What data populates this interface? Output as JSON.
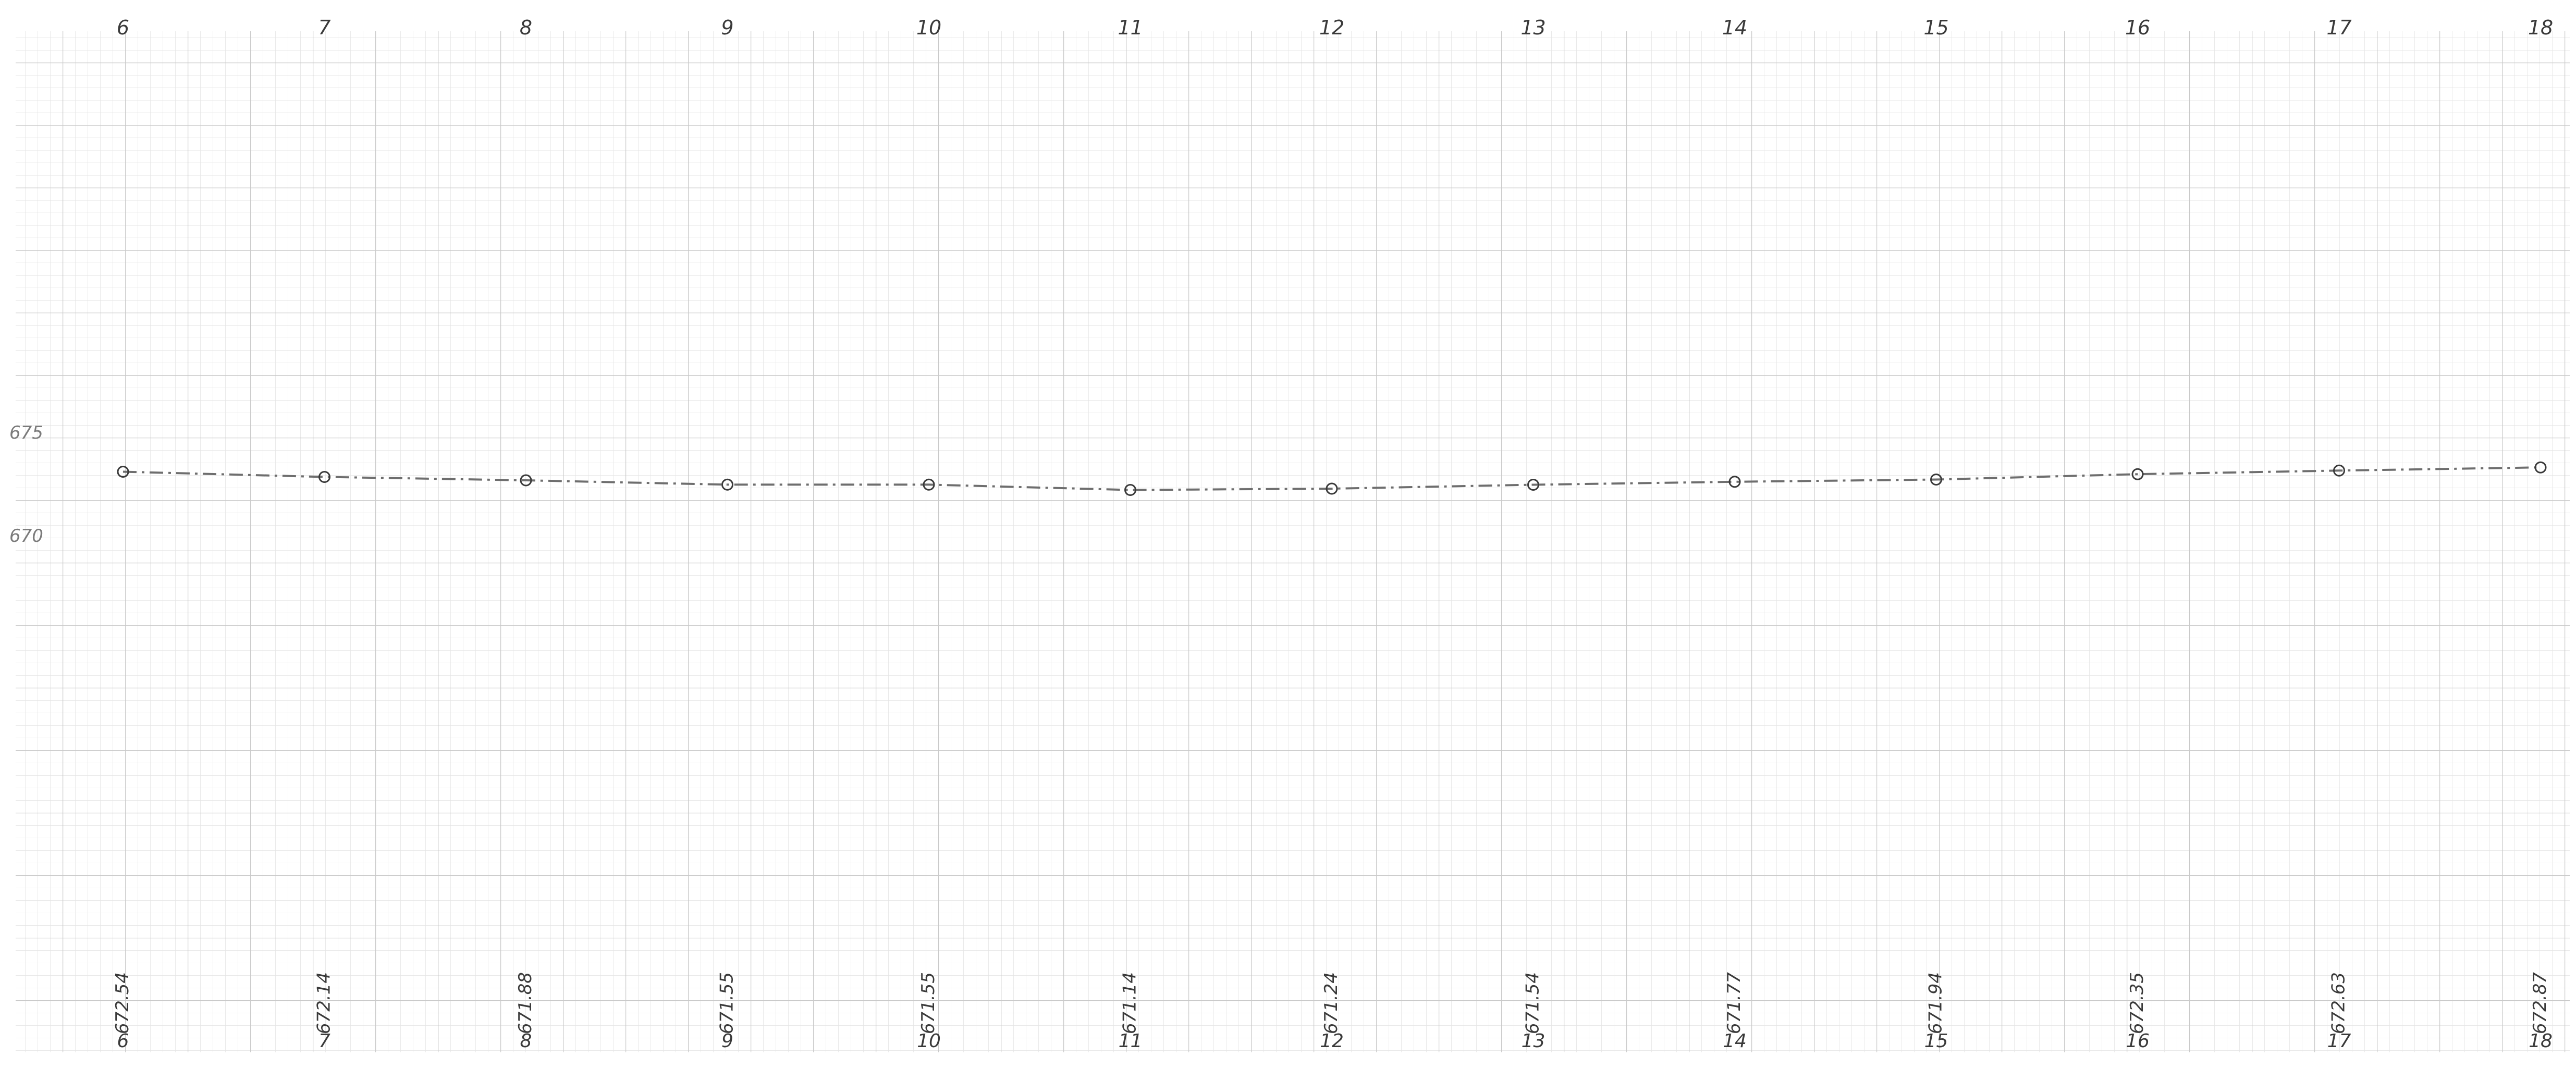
{
  "chart_data": {
    "type": "line",
    "title": "",
    "xlabel": "",
    "ylabel": "",
    "x": [
      6,
      7,
      8,
      9,
      10,
      11,
      12,
      13,
      14,
      15,
      16,
      17,
      18
    ],
    "top_station_labels": [
      "6",
      "7",
      "8",
      "9",
      "10",
      "11",
      "12",
      "13",
      "14",
      "15",
      "16",
      "17",
      "18"
    ],
    "bottom_station_labels": [
      "6",
      "7",
      "8",
      "9",
      "10",
      "11",
      "12",
      "13",
      "14",
      "15",
      "16",
      "17",
      "18"
    ],
    "elevation_labels": [
      "672.54",
      "672.14",
      "671.88",
      "671.55",
      "671.55",
      "671.14",
      "671.24",
      "671.54",
      "671.77",
      "671.94",
      "672.35",
      "672.63",
      "672.87"
    ],
    "series": [
      {
        "values": [
          672.54,
          672.14,
          671.88,
          671.55,
          671.55,
          671.14,
          671.24,
          671.54,
          671.77,
          671.94,
          672.35,
          672.63,
          672.87
        ]
      }
    ],
    "y_tick_labels": [
      "675",
      "670"
    ],
    "y_tick_values": [
      675,
      670
    ],
    "xlim": [
      6,
      18
    ],
    "grid": true,
    "line_style": "dash-dot",
    "marker": "circle",
    "colors": {
      "paper": "#ffffff",
      "grid_minor": "#e4e4e4",
      "grid_major": "#c9c9c9",
      "line": "#6e6e6e",
      "ink": "#3a3a3a"
    }
  }
}
